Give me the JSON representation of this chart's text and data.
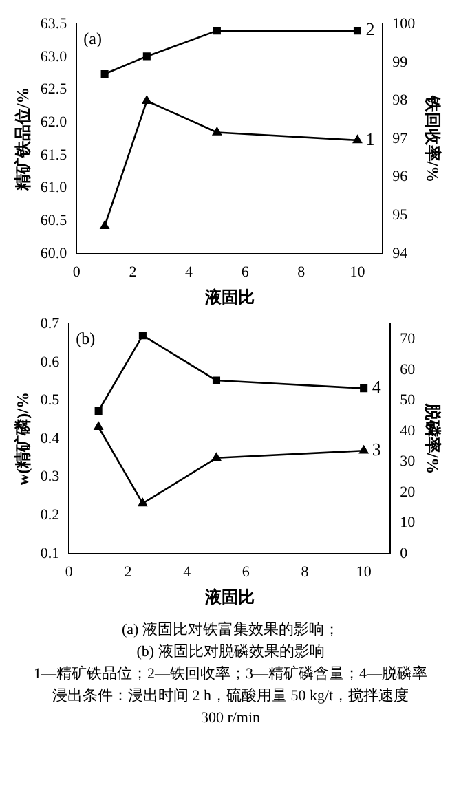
{
  "chart_data": [
    {
      "type": "line",
      "title": "(a)",
      "xlabel": "液固比",
      "ylabel": "精矿铁品位/%",
      "y2label": "铁回收率/%",
      "x": [
        1,
        2.5,
        5,
        10
      ],
      "series": [
        {
          "name": "1",
          "color": "#000000",
          "marker": "triangle",
          "values": [
            60.42,
            62.33,
            61.85,
            61.73
          ]
        },
        {
          "name": "2",
          "color": "#000000",
          "marker": "square",
          "axis": "y2",
          "values": [
            98.7,
            99.16,
            99.83,
            99.83
          ]
        }
      ],
      "xlim": [
        0,
        10.9
      ],
      "xticks": [
        0,
        2,
        4,
        6,
        8,
        10
      ],
      "ylim": [
        60,
        63.5
      ],
      "yticks": [
        {
          "value": 60,
          "label": "60.0"
        },
        60.5,
        {
          "value": 61,
          "label": "61.0"
        },
        61.5,
        {
          "value": 62,
          "label": "62.0"
        },
        62.5,
        {
          "value": 63,
          "label": "63.0"
        },
        63.5
      ],
      "y2lim": [
        94,
        100
      ],
      "y2ticks": [
        94,
        95,
        96,
        97,
        98,
        99,
        100
      ],
      "grid": false,
      "legend": false,
      "line_style": "solid"
    },
    {
      "type": "line",
      "title": "(b)",
      "xlabel": "液固比",
      "ylabel": "w(精矿磷)/%",
      "y2label": "脱磷率/%",
      "x": [
        1,
        2.5,
        5,
        10
      ],
      "series": [
        {
          "name": "3",
          "color": "#000000",
          "marker": "triangle",
          "values": [
            0.431,
            0.231,
            0.35,
            0.369
          ]
        },
        {
          "name": "4",
          "color": "#000000",
          "marker": "square",
          "axis": "y2",
          "values": [
            46.6,
            71.3,
            56.6,
            54.0
          ]
        }
      ],
      "xlim": [
        0,
        10.9
      ],
      "xticks": [
        0,
        2,
        4,
        6,
        8,
        10
      ],
      "ylim": [
        0.1,
        0.7
      ],
      "yticks": [
        0.1,
        0.2,
        0.3,
        0.4,
        0.5,
        0.6,
        0.7
      ],
      "y2lim": [
        0,
        75
      ],
      "y2ticks": [
        0,
        10,
        20,
        30,
        40,
        50,
        60,
        70
      ],
      "grid": false,
      "legend": false,
      "line_style": "solid",
      "annotations": [
        "(a) 液固比对铁富集效果的影响；",
        "(b) 液固比对脱磷效果的影响",
        "1—精矿铁品位；2—铁回收率；3—精矿磷含量；4—脱磷率",
        "浸出条件：浸出时间 2 h，硫酸用量 50 kg/t，搅拌速度",
        "300 r/min"
      ]
    }
  ]
}
